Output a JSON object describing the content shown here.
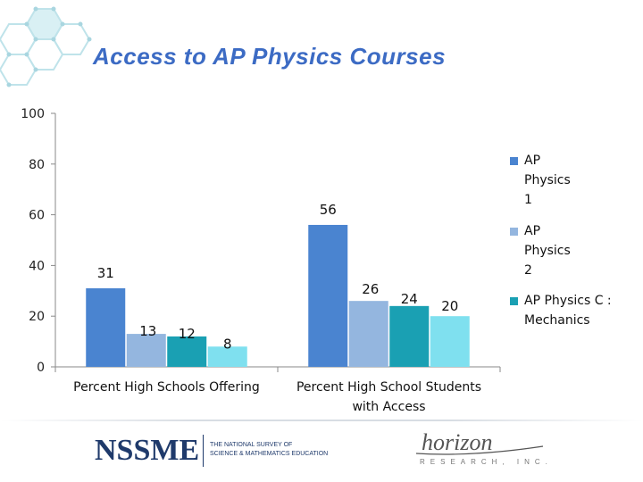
{
  "slide": {
    "title": "Access to AP Physics Courses",
    "title_color": "#3c6bc4"
  },
  "chart_data": {
    "type": "bar",
    "categories": [
      "Percent High Schools Offering",
      "Percent High School Students with Access"
    ],
    "series": [
      {
        "name": "AP Physics 1",
        "values": [
          31,
          56
        ],
        "color": "#4a84d0"
      },
      {
        "name": "AP Physics 2",
        "values": [
          13,
          26
        ],
        "color": "#94b6df"
      },
      {
        "name": "AP Physics C : Mechanics",
        "values": [
          12,
          24
        ],
        "color": "#1aa0b3"
      },
      {
        "name": "",
        "values": [
          8,
          20
        ],
        "color": "#7fe0ef"
      }
    ],
    "yticks": [
      0,
      20,
      40,
      60,
      80,
      100
    ],
    "ylim": [
      0,
      100
    ],
    "legend_position": "right",
    "grid": false
  },
  "footer": {
    "nssme_logo_text": "NSSME",
    "nssme_subtitle_line1": "THE NATIONAL SURVEY OF",
    "nssme_subtitle_line2": "SCIENCE & MATHEMATICS EDUCATION",
    "horizon_logo_text": "horizon",
    "horizon_subtext": "RESEARCH, INC.",
    "logo_color": "#1f3a6b"
  }
}
